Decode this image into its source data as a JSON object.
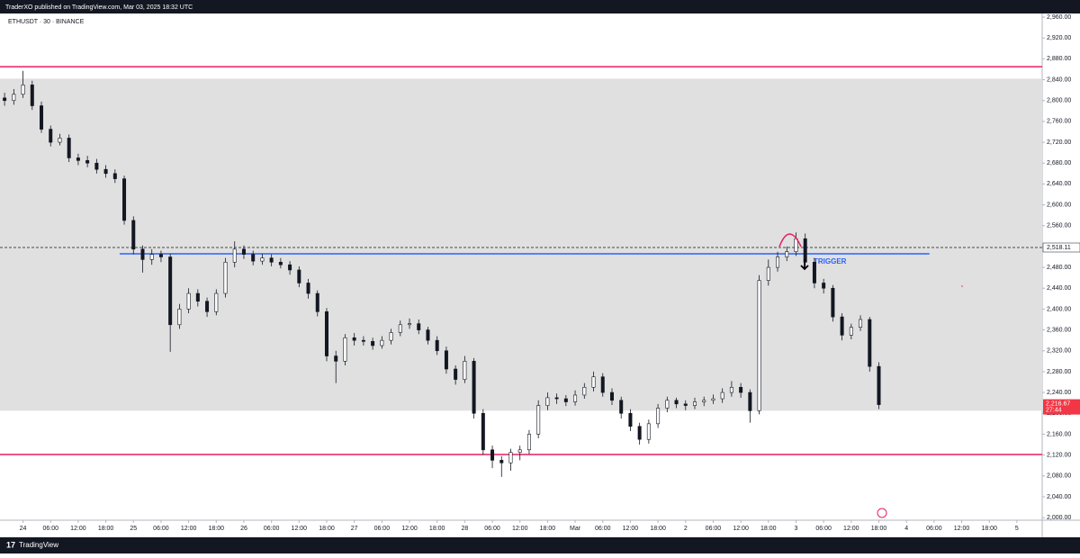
{
  "header": {
    "publisher": "TraderXO published on TradingView.com, Mar 03, 2025 18:32 UTC",
    "brand": "TradingView"
  },
  "chart_data": {
    "type": "candlestick",
    "symbol": "ETHUSDT · 30 · BINANCE",
    "x": [
      -4,
      -2,
      0,
      2,
      4,
      6,
      8,
      10,
      12,
      14,
      16,
      18,
      20,
      22,
      24,
      26,
      28,
      30,
      32,
      34,
      36,
      38,
      40,
      42,
      44,
      46,
      48,
      50,
      52,
      54,
      56,
      58,
      60,
      62,
      64,
      66,
      68,
      70,
      72,
      74,
      76,
      78,
      80,
      82,
      84,
      86,
      88,
      90,
      92,
      94,
      96,
      98,
      100,
      102,
      104,
      106,
      108,
      110,
      112,
      114,
      116,
      118,
      120,
      122,
      124,
      126,
      128,
      130,
      132,
      134,
      136,
      138,
      140,
      142,
      144,
      146,
      148,
      150,
      152,
      154,
      156,
      158,
      160,
      162,
      164,
      166,
      168,
      170,
      172,
      174,
      176,
      178,
      180,
      182,
      184,
      186
    ],
    "open": [
      2805,
      2800,
      2812,
      2830,
      2790,
      2745,
      2720,
      2728,
      2690,
      2685,
      2680,
      2668,
      2660,
      2650,
      2570,
      2515,
      2495,
      2505,
      2500,
      2370,
      2400,
      2430,
      2415,
      2395,
      2430,
      2490,
      2515,
      2505,
      2492,
      2498,
      2490,
      2485,
      2475,
      2450,
      2430,
      2395,
      2310,
      2300,
      2345,
      2340,
      2338,
      2330,
      2340,
      2355,
      2370,
      2372,
      2360,
      2340,
      2320,
      2285,
      2265,
      2300,
      2200,
      2130,
      2110,
      2105,
      2125,
      2130,
      2160,
      2215,
      2230,
      2228,
      2222,
      2235,
      2250,
      2270,
      2240,
      2225,
      2200,
      2175,
      2150,
      2180,
      2210,
      2225,
      2218,
      2215,
      2222,
      2225,
      2228,
      2240,
      2250,
      2240,
      2205,
      2455,
      2480,
      2500,
      2510,
      2535,
      2490,
      2450,
      2440,
      2385,
      2350,
      2365,
      2380,
      2290
    ],
    "high": [
      2815,
      2822,
      2857,
      2838,
      2798,
      2752,
      2736,
      2735,
      2698,
      2694,
      2688,
      2676,
      2668,
      2656,
      2578,
      2522,
      2515,
      2512,
      2506,
      2410,
      2440,
      2438,
      2422,
      2438,
      2498,
      2530,
      2522,
      2512,
      2506,
      2505,
      2498,
      2492,
      2482,
      2458,
      2436,
      2402,
      2320,
      2352,
      2354,
      2348,
      2345,
      2348,
      2362,
      2378,
      2382,
      2380,
      2366,
      2348,
      2328,
      2292,
      2310,
      2306,
      2208,
      2138,
      2118,
      2132,
      2138,
      2168,
      2225,
      2240,
      2238,
      2235,
      2244,
      2258,
      2280,
      2277,
      2248,
      2232,
      2208,
      2182,
      2188,
      2218,
      2232,
      2230,
      2225,
      2230,
      2232,
      2236,
      2248,
      2262,
      2258,
      2246,
      2465,
      2495,
      2510,
      2520,
      2547,
      2545,
      2498,
      2458,
      2446,
      2392,
      2372,
      2388,
      2385,
      2298
    ],
    "low": [
      2790,
      2792,
      2805,
      2782,
      2738,
      2712,
      2714,
      2682,
      2676,
      2672,
      2660,
      2652,
      2642,
      2562,
      2505,
      2470,
      2485,
      2490,
      2318,
      2362,
      2392,
      2405,
      2385,
      2388,
      2422,
      2480,
      2496,
      2484,
      2485,
      2482,
      2478,
      2466,
      2442,
      2420,
      2386,
      2300,
      2258,
      2292,
      2330,
      2330,
      2322,
      2324,
      2332,
      2348,
      2362,
      2352,
      2332,
      2312,
      2276,
      2255,
      2258,
      2190,
      2120,
      2095,
      2078,
      2090,
      2110,
      2122,
      2152,
      2206,
      2218,
      2214,
      2215,
      2228,
      2242,
      2232,
      2216,
      2190,
      2166,
      2140,
      2142,
      2172,
      2202,
      2210,
      2206,
      2208,
      2214,
      2218,
      2220,
      2232,
      2230,
      2182,
      2198,
      2445,
      2472,
      2492,
      2502,
      2482,
      2440,
      2430,
      2376,
      2340,
      2342,
      2358,
      2280,
      2208
    ],
    "close": [
      2800,
      2812,
      2830,
      2790,
      2745,
      2720,
      2728,
      2690,
      2685,
      2680,
      2668,
      2660,
      2650,
      2570,
      2515,
      2495,
      2505,
      2500,
      2370,
      2400,
      2430,
      2415,
      2395,
      2430,
      2490,
      2515,
      2505,
      2492,
      2498,
      2490,
      2485,
      2475,
      2450,
      2430,
      2395,
      2310,
      2300,
      2345,
      2340,
      2338,
      2330,
      2340,
      2355,
      2370,
      2372,
      2360,
      2340,
      2320,
      2285,
      2265,
      2300,
      2200,
      2130,
      2110,
      2105,
      2125,
      2130,
      2160,
      2215,
      2230,
      2228,
      2222,
      2235,
      2250,
      2270,
      2240,
      2225,
      2200,
      2175,
      2150,
      2180,
      2210,
      2225,
      2218,
      2215,
      2222,
      2225,
      2228,
      2240,
      2250,
      2240,
      2205,
      2455,
      2480,
      2500,
      2510,
      2535,
      2490,
      2450,
      2440,
      2385,
      2350,
      2365,
      2380,
      2290,
      2216.67
    ],
    "up_color": "#ffffff",
    "down_color": "#131722",
    "xlim": [
      -5,
      221.5
    ],
    "xticks": [
      {
        "value": 0,
        "label": "24"
      },
      {
        "value": 6,
        "label": "06:00"
      },
      {
        "value": 12,
        "label": "12:00"
      },
      {
        "value": 18,
        "label": "18:00"
      },
      {
        "value": 24,
        "label": "25"
      },
      {
        "value": 30,
        "label": "06:00"
      },
      {
        "value": 36,
        "label": "12:00"
      },
      {
        "value": 42,
        "label": "18:00"
      },
      {
        "value": 48,
        "label": "26"
      },
      {
        "value": 54,
        "label": "06:00"
      },
      {
        "value": 60,
        "label": "12:00"
      },
      {
        "value": 66,
        "label": "18:00"
      },
      {
        "value": 72,
        "label": "27"
      },
      {
        "value": 78,
        "label": "06:00"
      },
      {
        "value": 84,
        "label": "12:00"
      },
      {
        "value": 90,
        "label": "18:00"
      },
      {
        "value": 96,
        "label": "28"
      },
      {
        "value": 102,
        "label": "06:00"
      },
      {
        "value": 108,
        "label": "12:00"
      },
      {
        "value": 114,
        "label": "18:00"
      },
      {
        "value": 120,
        "label": "Mar"
      },
      {
        "value": 126,
        "label": "06:00"
      },
      {
        "value": 132,
        "label": "12:00"
      },
      {
        "value": 138,
        "label": "18:00"
      },
      {
        "value": 144,
        "label": "2"
      },
      {
        "value": 150,
        "label": "06:00"
      },
      {
        "value": 156,
        "label": "12:00"
      },
      {
        "value": 162,
        "label": "18:00"
      },
      {
        "value": 168,
        "label": "3"
      },
      {
        "value": 174,
        "label": "06:00"
      },
      {
        "value": 180,
        "label": "12:00"
      },
      {
        "value": 186,
        "label": "18:00"
      },
      {
        "value": 192,
        "label": "4"
      },
      {
        "value": 198,
        "label": "06:00"
      },
      {
        "value": 204,
        "label": "12:00"
      },
      {
        "value": 210,
        "label": "18:00"
      },
      {
        "value": 216,
        "label": "5"
      }
    ],
    "ylim": [
      1995,
      2967
    ],
    "yticks": [
      {
        "value": 2000,
        "label": "2,000.00"
      },
      {
        "value": 2040,
        "label": "2,040.00"
      },
      {
        "value": 2080,
        "label": "2,080.00"
      },
      {
        "value": 2120,
        "label": "2,120.00"
      },
      {
        "value": 2160,
        "label": "2,160.00"
      },
      {
        "value": 2200,
        "label": "2,200.00"
      },
      {
        "value": 2240,
        "label": "2,240.00"
      },
      {
        "value": 2280,
        "label": "2,280.00"
      },
      {
        "value": 2320,
        "label": "2,320.00"
      },
      {
        "value": 2360,
        "label": "2,360.00"
      },
      {
        "value": 2400,
        "label": "2,400.00"
      },
      {
        "value": 2440,
        "label": "2,440.00"
      },
      {
        "value": 2480,
        "label": "2,480.00"
      },
      {
        "value": 2560,
        "label": "2,560.00"
      },
      {
        "value": 2600,
        "label": "2,600.00"
      },
      {
        "value": 2640,
        "label": "2,640.00"
      },
      {
        "value": 2680,
        "label": "2,680.00"
      },
      {
        "value": 2720,
        "label": "2,720.00"
      },
      {
        "value": 2760,
        "label": "2,760.00"
      },
      {
        "value": 2800,
        "label": "2,800.00"
      },
      {
        "value": 2840,
        "label": "2,840.00"
      },
      {
        "value": 2880,
        "label": "2,880.00"
      },
      {
        "value": 2920,
        "label": "2,920.00"
      },
      {
        "value": 2960,
        "label": "2,960.00"
      }
    ],
    "zone": [
      2205,
      2842
    ],
    "zone_color": "#e0e0e0",
    "levels": [
      {
        "price": 2865,
        "color": "#e91e63"
      },
      {
        "price": 2121,
        "color": "#e91e63"
      }
    ],
    "trendline": {
      "price": 2506,
      "x": [
        21,
        197
      ],
      "color": "#2962ff"
    },
    "annotation": "TRIGGER",
    "reference_price": {
      "value": 2518.11,
      "label": "2,518.11"
    },
    "last_price": {
      "value": 2216.67,
      "label": "2,216.67"
    },
    "countdown": "27:44"
  }
}
